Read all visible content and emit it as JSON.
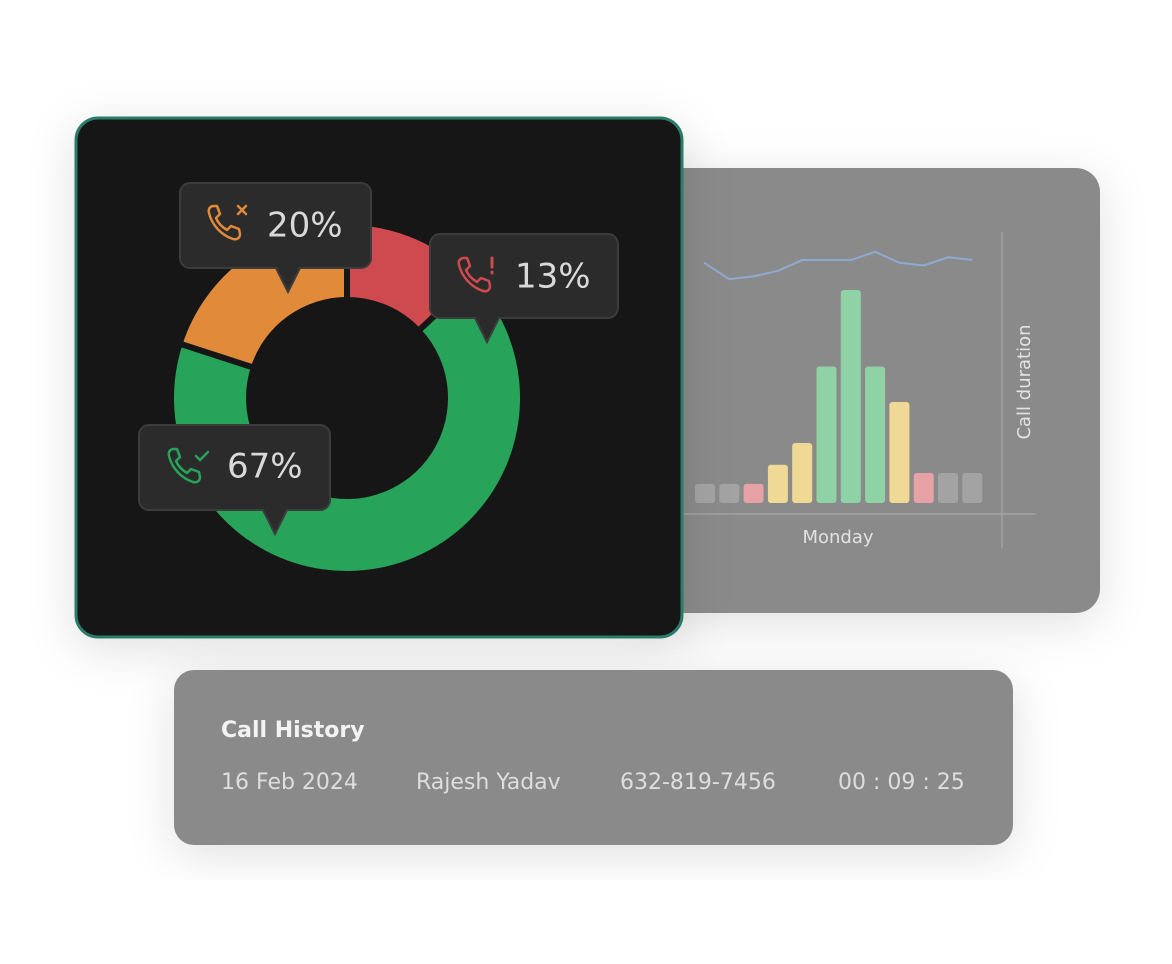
{
  "chart_data": [
    {
      "type": "pie",
      "donut": true,
      "values": [
        20,
        13,
        67
      ],
      "value_labels": [
        "20%",
        "13%",
        "67%"
      ],
      "colors": [
        "#e08a3a",
        "#cf4a4e",
        "#27a35a"
      ]
    },
    {
      "type": "bar",
      "xlabel": "Monday",
      "ylabel": "Call duration",
      "ylim": [
        0,
        100
      ],
      "series": [
        {
          "type": "bar",
          "values": [
            7,
            7,
            7,
            14,
            22,
            50,
            78,
            50,
            37,
            11,
            11,
            11
          ],
          "colors": [
            "#a3a3a3",
            "#a3a3a3",
            "#e6a2a5",
            "#efd994",
            "#efd994",
            "#8ed2a6",
            "#8ed2a6",
            "#8ed2a6",
            "#efd994",
            "#e6a2a5",
            "#a3a3a3",
            "#a3a3a3"
          ]
        },
        {
          "type": "line",
          "color": "#8eaad0",
          "values": [
            88,
            82,
            83,
            85,
            89,
            89,
            89,
            92,
            88,
            87,
            90,
            89
          ]
        }
      ]
    }
  ],
  "call_history": {
    "title": "Call History",
    "row": [
      "16 Feb 2024",
      "Rajesh Yadav",
      "632-819-7456",
      "00 : 09 : 25"
    ]
  }
}
